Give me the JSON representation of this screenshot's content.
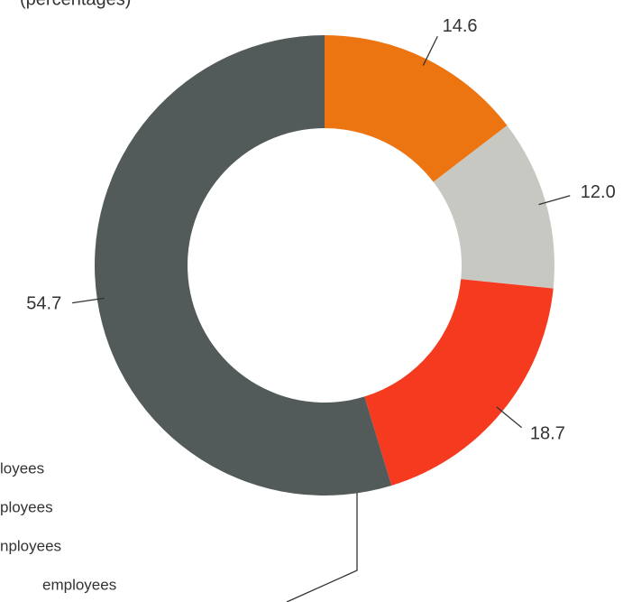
{
  "chart_data": {
    "type": "donut",
    "subtitle": "(percentages)",
    "categories": [
      "loyees",
      "ployees",
      "nployees",
      "employees"
    ],
    "values": [
      14.6,
      12.0,
      18.7,
      54.7
    ],
    "value_labels": [
      "14.6",
      "12.0",
      "18.7",
      "54.7"
    ],
    "colors": [
      "#ed7511",
      "#c8c8c3",
      "#f53a1f",
      "#525a5a"
    ]
  }
}
